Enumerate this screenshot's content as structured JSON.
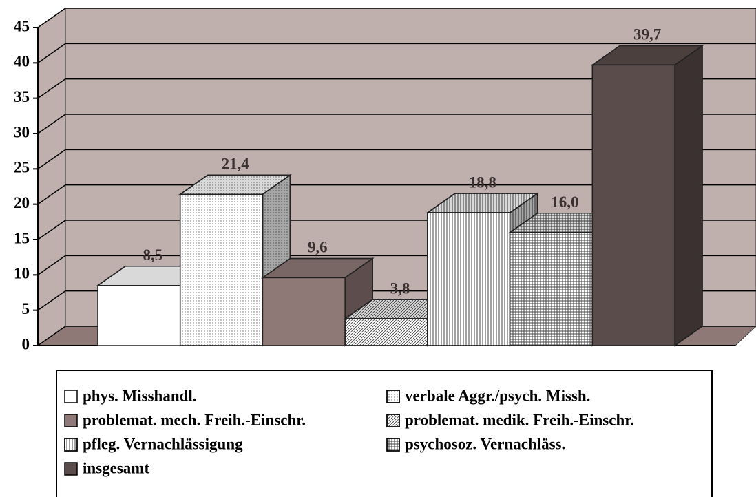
{
  "chart_data": {
    "type": "bar3d",
    "ylim": [
      0,
      45
    ],
    "yticks": [
      0,
      5,
      10,
      15,
      20,
      25,
      30,
      35,
      40,
      45
    ],
    "grid": true,
    "wall_color": "#bfb0ae",
    "series": [
      {
        "name": "phys. Misshandl.",
        "color": "#ffffff",
        "pattern": "none",
        "values": [
          8.5
        ],
        "value_labels": [
          "8,5"
        ]
      },
      {
        "name": "verbale Aggr./psych. Missh.",
        "color": "#ffffff",
        "pattern": "dots",
        "values": [
          21.4
        ],
        "value_labels": [
          "21,4"
        ]
      },
      {
        "name": "problemat. mech. Freih.-Einschr.",
        "color": "#8f7977",
        "pattern": "none",
        "values": [
          9.6
        ],
        "value_labels": [
          "9,6"
        ]
      },
      {
        "name": "problemat. medik. Freih.-Einschr.",
        "color": "#ffffff",
        "pattern": "diagonal",
        "values": [
          3.8
        ],
        "value_labels": [
          "3,8"
        ]
      },
      {
        "name": "pfleg. Vernachlässigung",
        "color": "#ffffff",
        "pattern": "vertical",
        "values": [
          18.8
        ],
        "value_labels": [
          "18,8"
        ]
      },
      {
        "name": "psychosoz. Vernachläss.",
        "color": "#ffffff",
        "pattern": "grid",
        "values": [
          16.0
        ],
        "value_labels": [
          "16,0"
        ]
      },
      {
        "name": "insgesamt",
        "color": "#5a4c4a",
        "pattern": "none",
        "values": [
          39.7
        ],
        "value_labels": [
          "39,7"
        ]
      }
    ]
  }
}
